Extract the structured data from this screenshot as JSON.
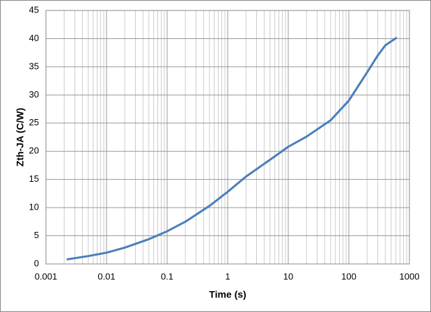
{
  "chart_data": {
    "type": "line",
    "x_label": "Time (s)",
    "y_label": "Zth-JA (C/W)",
    "x": [
      0.0022,
      0.005,
      0.01,
      0.02,
      0.05,
      0.1,
      0.2,
      0.5,
      1,
      2,
      5,
      10,
      20,
      50,
      100,
      200,
      300,
      400,
      620
    ],
    "series": [
      {
        "name": "Zth-JA",
        "color": "#4a7ebb",
        "values": [
          0.8,
          1.4,
          2.0,
          2.9,
          4.4,
          5.8,
          7.5,
          10.3,
          12.8,
          15.5,
          18.5,
          20.8,
          22.6,
          25.5,
          29,
          34,
          37,
          38.8,
          40.2
        ]
      }
    ],
    "xlim": [
      0.001,
      1000
    ],
    "xticks": [
      0.001,
      0.01,
      0.1,
      1,
      10,
      100,
      1000
    ],
    "xlog": true,
    "ylim": [
      0,
      45
    ],
    "yticks": [
      0,
      5,
      10,
      15,
      20,
      25,
      30,
      35,
      40,
      45
    ],
    "grid": true
  }
}
